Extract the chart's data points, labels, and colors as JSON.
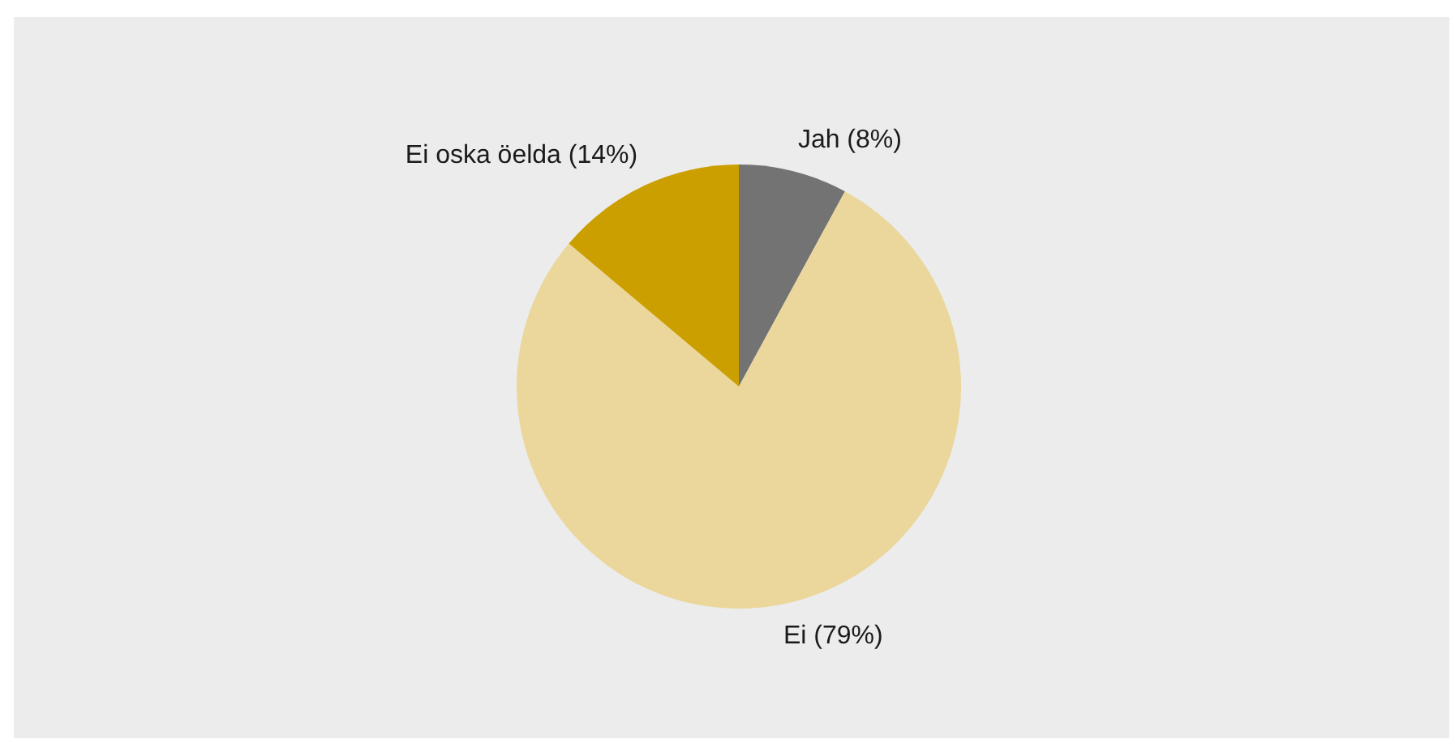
{
  "chart_data": {
    "type": "pie",
    "categories": [
      "Jah",
      "Ei",
      "Ei oska öelda"
    ],
    "values": [
      8,
      79,
      14
    ],
    "colors": [
      "#737373",
      "#ebd79c",
      "#cc9f00"
    ],
    "value_labels": [
      "(8%)",
      "(79%)",
      "(14%)"
    ]
  }
}
